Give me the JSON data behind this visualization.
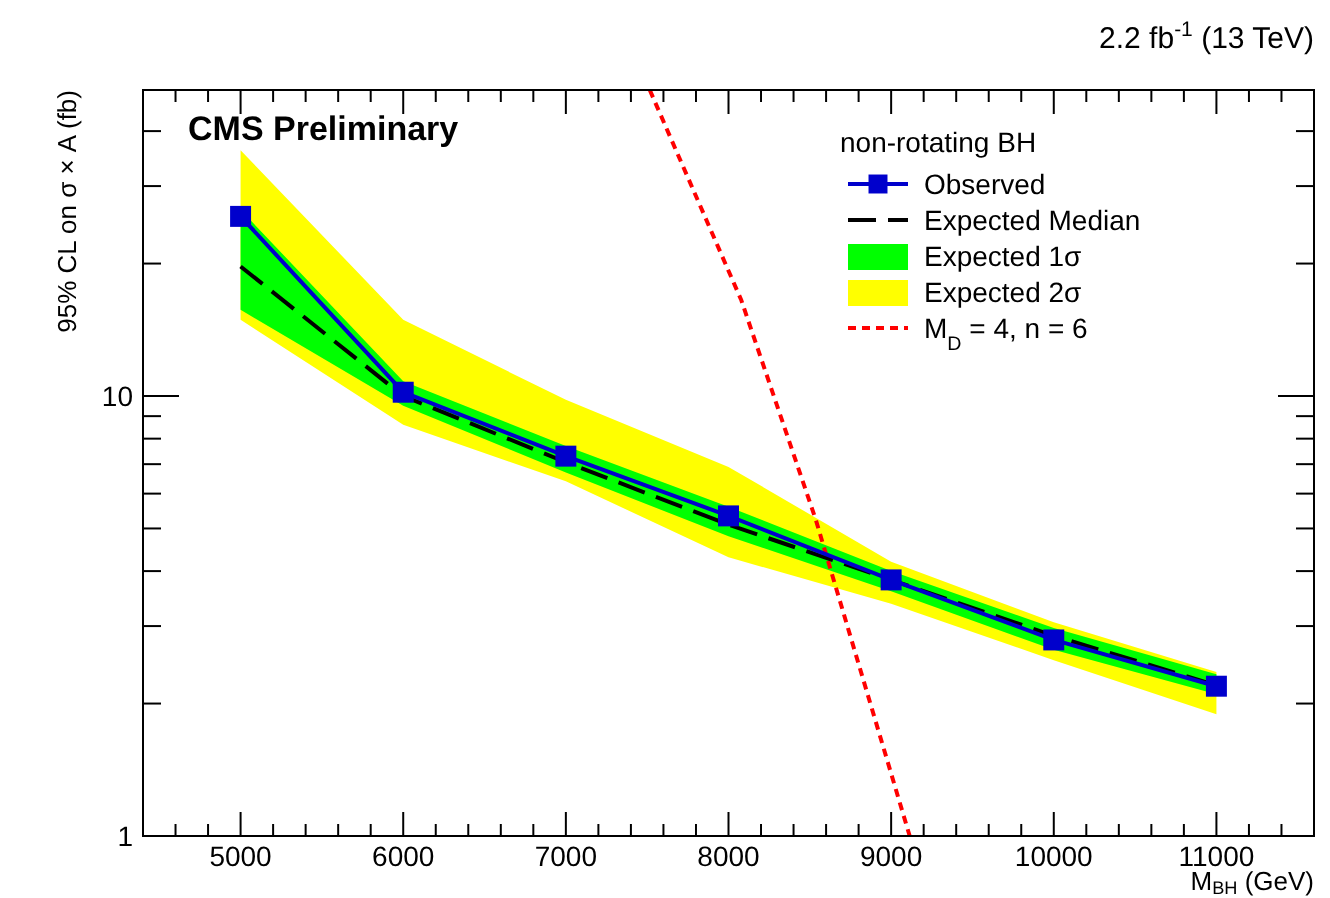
{
  "chart_data": {
    "type": "line",
    "xlabel": "M$_{BH}$ (GeV)",
    "ylabel": "95% CL on σ × A (fb)",
    "legend_title": "non-rotating BH",
    "log": "y",
    "grid": false,
    "legend": "top right",
    "annotations": [
      "CMS Preliminary",
      "2.2 fb$^{-1}$ (13 TeV)"
    ],
    "xlim": [
      4400,
      11600
    ],
    "ylim": [
      1,
      49.6
    ],
    "xticks": [
      {
        "value": 4400,
        "label": null
      },
      {
        "value": 4600,
        "label": null
      },
      {
        "value": 4800,
        "label": null
      },
      5000,
      {
        "value": 5200,
        "label": null
      },
      {
        "value": 5400,
        "label": null
      },
      {
        "value": 5600,
        "label": null
      },
      {
        "value": 5800,
        "label": null
      },
      6000,
      {
        "value": 6200,
        "label": null
      },
      {
        "value": 6400,
        "label": null
      },
      {
        "value": 6600,
        "label": null
      },
      {
        "value": 6800,
        "label": null
      },
      7000,
      {
        "value": 7200,
        "label": null
      },
      {
        "value": 7400,
        "label": null
      },
      {
        "value": 7600,
        "label": null
      },
      {
        "value": 7800,
        "label": null
      },
      8000,
      {
        "value": 8200,
        "label": null
      },
      {
        "value": 8400,
        "label": null
      },
      {
        "value": 8600,
        "label": null
      },
      {
        "value": 8800,
        "label": null
      },
      9000,
      {
        "value": 9200,
        "label": null
      },
      {
        "value": 9400,
        "label": null
      },
      {
        "value": 9600,
        "label": null
      },
      {
        "value": 9800,
        "label": null
      },
      10000,
      {
        "value": 10200,
        "label": null
      },
      {
        "value": 10400,
        "label": null
      },
      {
        "value": 10600,
        "label": null
      },
      {
        "value": 10800,
        "label": null
      },
      11000,
      {
        "value": 11200,
        "label": null
      },
      {
        "value": 11400,
        "label": null
      }
    ],
    "yticks": [
      1,
      {
        "value": 2,
        "label": null
      },
      {
        "value": 3,
        "label": null
      },
      {
        "value": 4,
        "label": null
      },
      {
        "value": 5,
        "label": null
      },
      {
        "value": 6,
        "label": null
      },
      {
        "value": 7,
        "label": null
      },
      {
        "value": 8,
        "label": null
      },
      {
        "value": 9,
        "label": null
      },
      10,
      {
        "value": 20,
        "label": null
      },
      {
        "value": 30,
        "label": null
      },
      {
        "value": 40,
        "label": null
      }
    ],
    "x": [
      5000,
      6000,
      7000,
      8000,
      9000,
      10000,
      11000
    ],
    "series": [
      {
        "name": "Observed",
        "color": "#0000cc",
        "marker": "square",
        "line_style": "solid",
        "values": [
          25.6,
          10.2,
          7.3,
          5.34,
          3.82,
          2.79,
          2.19
        ]
      },
      {
        "name": "Expected Median",
        "color": "#000000",
        "marker": "none",
        "line_style": "dashed",
        "values": [
          19.7,
          10.0,
          7.07,
          5.1,
          3.82,
          2.85,
          2.2
        ]
      },
      {
        "name": "Expected 1σ",
        "color": "#00ff00",
        "lower": [
          15.7,
          9.5,
          6.7,
          4.8,
          3.6,
          2.65,
          2.1
        ],
        "values": [
          null,
          null,
          null,
          null,
          null,
          null,
          null
        ],
        "upper": [
          26.5,
          10.8,
          7.7,
          5.6,
          4.0,
          2.97,
          2.33
        ]
      },
      {
        "name": "Expected 2σ",
        "color": "#ffff00",
        "lower": [
          14.9,
          8.6,
          6.4,
          4.3,
          3.37,
          2.51,
          1.89
        ],
        "values": [
          null,
          null,
          null,
          null,
          null,
          null,
          null
        ],
        "upper": [
          36.2,
          14.9,
          9.8,
          6.9,
          4.2,
          3.06,
          2.36
        ]
      },
      {
        "name": "M$_{D}$ = 4, n = 6",
        "type": "line",
        "color": "#ff0000",
        "marker": "none",
        "line_style": "dotted",
        "x": [
          7516,
          8079,
          8537,
          9114
        ],
        "values": [
          49.6,
          16.5,
          5.23,
          1
        ]
      }
    ]
  }
}
